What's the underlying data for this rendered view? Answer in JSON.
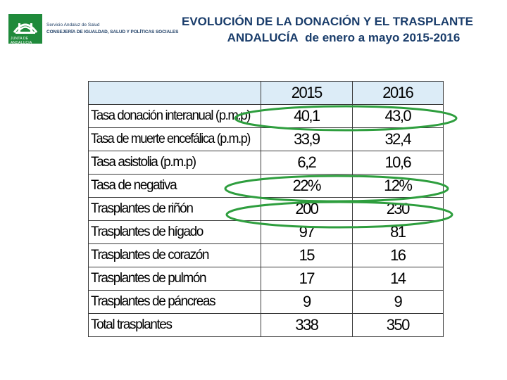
{
  "logo": {
    "line1": "Servicio Andaluz de Salud",
    "line2": "CONSEJERÍA DE IGUALDAD, SALUD Y POLÍTICAS SOCIALES",
    "band": "JUNTA DE ANDALUCIA"
  },
  "title": {
    "line1": "EVOLUCIÓN DE LA DONACIÓN Y EL TRASPLANTE",
    "line2_a": "ANDALUCÍA",
    "line2_b": "de enero a mayo 2015-2016"
  },
  "table": {
    "columns": [
      "2015",
      "2016"
    ],
    "rows": [
      {
        "label": "Tasa donación interanual (p.m.p)",
        "v2015": "40,1",
        "v2016": "43,0"
      },
      {
        "label": "Tasa de muerte encefálica (p.m.p)",
        "v2015": "33,9",
        "v2016": "32,4"
      },
      {
        "label": "Tasa asistolia (p.m.p)",
        "v2015": "6,2",
        "v2016": "10,6"
      },
      {
        "label": "Tasa de negativa",
        "v2015": "22%",
        "v2016": "12%"
      },
      {
        "label": "Trasplantes de riñón",
        "v2015": "200",
        "v2016": "230"
      },
      {
        "label": "Trasplantes de hígado",
        "v2015": "97",
        "v2016": "81"
      },
      {
        "label": "Trasplantes de corazón",
        "v2015": "15",
        "v2016": "16"
      },
      {
        "label": "Trasplantes de pulmón",
        "v2015": "17",
        "v2016": "14"
      },
      {
        "label": "Trasplantes de páncreas",
        "v2015": "9",
        "v2016": "9"
      },
      {
        "label": "Total trasplantes",
        "v2015": "338",
        "v2016": "350"
      }
    ]
  },
  "colors": {
    "title": "#1a3d6b",
    "header_fill": "#dcecf7",
    "highlight_oval": "#2e9e3e",
    "logo_green": "#1f8a3b"
  }
}
